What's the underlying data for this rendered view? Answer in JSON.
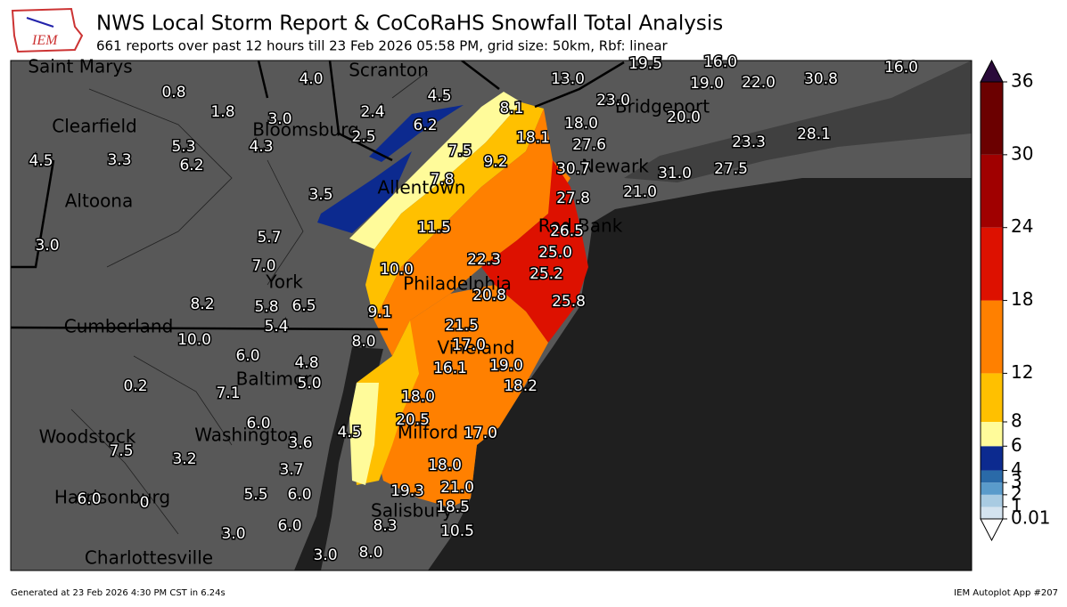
{
  "header": {
    "title": "NWS Local Storm Report & CoCoRaHS Snowfall Total Analysis",
    "subtitle": "661 reports over past 12 hours till 23 Feb 2026 05:58 PM, grid size: 50km, Rbf: linear",
    "logo": "IEM"
  },
  "cities": [
    "Saint Marys",
    "Scranton",
    "Clearfield",
    "Bloomsburg",
    "Bridgeport",
    "Newark",
    "Allentown",
    "Altoona",
    "Red Bank",
    "York",
    "Philadelphia",
    "Cumberland",
    "Vineland",
    "Baltimore",
    "Woodstock",
    "Washington",
    "Milford",
    "Harrisonburg",
    "Salisbury",
    "Charlottesville"
  ],
  "reports": [
    "0.8",
    "4.0",
    "1.8",
    "3.0",
    "2.4",
    "4.5",
    "6.2",
    "8.1",
    "13.0",
    "19.5",
    "16.0",
    "19.0",
    "22.0",
    "30.8",
    "16.0",
    "23.0",
    "18.0",
    "20.0",
    "18.1",
    "27.6",
    "23.3",
    "28.1",
    "5.3",
    "4.3",
    "2.5",
    "7.5",
    "9.2",
    "4.5",
    "3.3",
    "6.2",
    "30.7",
    "31.0",
    "27.5",
    "7.8",
    "27.8",
    "21.0",
    "3.5",
    "11.5",
    "26.5",
    "5.7",
    "3.0",
    "25.0",
    "7.0",
    "10.0",
    "22.3",
    "25.2",
    "20.8",
    "25.8",
    "8.2",
    "5.8",
    "6.5",
    "9.1",
    "5.4",
    "21.5",
    "10.0",
    "8.0",
    "17.0",
    "6.0",
    "4.8",
    "19.0",
    "16.1",
    "0.2",
    "5.0",
    "18.2",
    "7.1",
    "18.0",
    "6.0",
    "20.5",
    "4.5",
    "17.0",
    "3.6",
    "7.5",
    "3.2",
    "18.0",
    "3.7",
    "21.0",
    "5.5",
    "6.0",
    "19.3",
    "6.0",
    "0",
    "18.5",
    "8.3",
    "6.0",
    "10.5",
    "3.0",
    "8.0",
    "3.0"
  ],
  "colorbar": {
    "ticks": [
      0.01,
      1,
      2,
      3,
      4,
      6,
      8,
      12,
      18,
      24,
      30,
      36
    ],
    "colors": [
      "#d4e3ef",
      "#a9cbe2",
      "#5a9bcb",
      "#2a6aa8",
      "#0c2a8f",
      "#fffb9a",
      "#ffc000",
      "#ff8000",
      "#dd1100",
      "#a00000",
      "#6b0000"
    ],
    "under_color": "#ffffff",
    "over_color": "#2a0a3a"
  },
  "footer": {
    "left": "Generated at 23 Feb 2026 4:30 PM CST in 6.24s",
    "right": "IEM Autoplot App #207"
  }
}
